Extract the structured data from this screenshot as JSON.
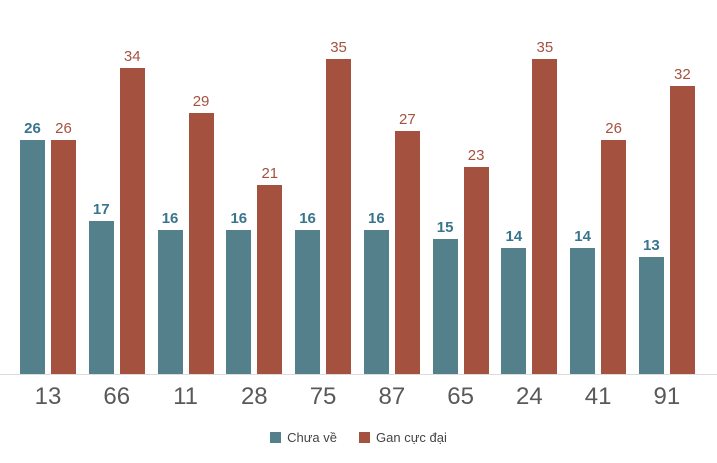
{
  "chart_data": {
    "type": "bar",
    "title": "",
    "xlabel": "",
    "ylabel": "",
    "categories": [
      "13",
      "66",
      "11",
      "28",
      "75",
      "87",
      "65",
      "24",
      "41",
      "91"
    ],
    "series": [
      {
        "name": "Chưa về",
        "color": "#54808B",
        "label_color": "#38758D",
        "label_bold": true,
        "values": [
          26,
          17,
          16,
          16,
          16,
          16,
          15,
          14,
          14,
          13
        ]
      },
      {
        "name": "Gan cực đại",
        "color": "#A4523F",
        "label_color": "#A4523F",
        "label_bold": false,
        "values": [
          26,
          34,
          29,
          21,
          35,
          27,
          23,
          35,
          26,
          32
        ]
      }
    ],
    "ylim": [
      0,
      38
    ],
    "grid": false,
    "data_labels": true,
    "legend_position": "bottom",
    "axis_line_color": "#DCDCDC",
    "tick_label_color": "#595959",
    "legend_text_color": "#444444"
  }
}
